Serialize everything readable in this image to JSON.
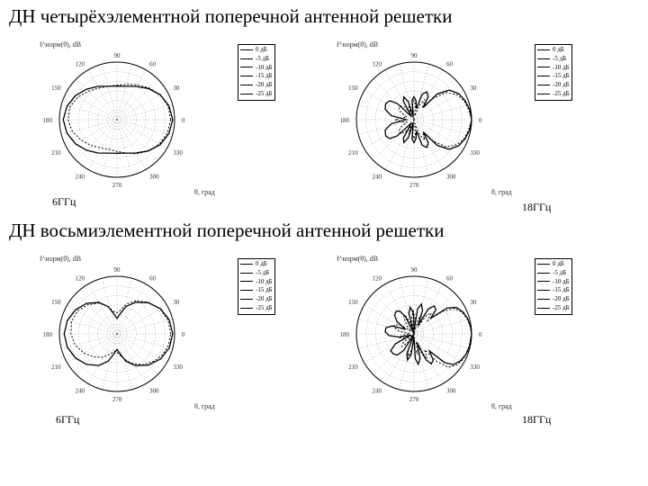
{
  "background_color": "#ffffff",
  "text_color": "#000000",
  "section1": {
    "title": "ДН четырёхэлементной поперечной антенной решетки",
    "left_freq": "6ГГц",
    "right_freq": "18ГГц"
  },
  "section2": {
    "title": "ДН восьмиэлементной поперечной антенной решетки",
    "left_freq": "6ГГц",
    "right_freq": "18ГГц"
  },
  "polar": {
    "type": "polar",
    "outer_r": 64,
    "rings_dB": [
      0,
      -5,
      -10,
      -15,
      -20,
      -25,
      -30
    ],
    "angle_ticks_deg": [
      0,
      15,
      30,
      45,
      60,
      75,
      90,
      105,
      120,
      135,
      150,
      165,
      180,
      195,
      210,
      225,
      240,
      255,
      270,
      285,
      300,
      315,
      330,
      345
    ],
    "angle_labels": [
      0,
      30,
      60,
      90,
      120,
      150,
      180,
      210,
      240,
      270,
      300,
      330
    ],
    "grid_color": "#888888",
    "grid_stroke": 0.4,
    "outline_color": "#000000",
    "outline_stroke": 1,
    "label_fontsize": 7,
    "title_y": "f^норм(θ), dB",
    "title_x": "θ, град"
  },
  "legend": {
    "items": [
      "0 дБ",
      "-5 дБ",
      "-10 дБ",
      "-15 дБ",
      "-20 дБ",
      "-25 дБ"
    ]
  },
  "curves": {
    "stroke_color": "#000000",
    "stroke_solid": 1.3,
    "stroke_dash": 1,
    "dash_pattern": "2,2",
    "four_6": {
      "solid": [
        [
          0,
          -1
        ],
        [
          15,
          -2
        ],
        [
          30,
          -4
        ],
        [
          45,
          -7
        ],
        [
          60,
          -10
        ],
        [
          75,
          -12
        ],
        [
          90,
          -12.5
        ],
        [
          105,
          -12
        ],
        [
          120,
          -10
        ],
        [
          135,
          -7.5
        ],
        [
          150,
          -5
        ],
        [
          165,
          -3
        ],
        [
          180,
          -2
        ],
        [
          195,
          -3
        ],
        [
          210,
          -5
        ],
        [
          225,
          -7.5
        ],
        [
          240,
          -10
        ],
        [
          255,
          -12
        ],
        [
          270,
          -12.5
        ],
        [
          285,
          -12
        ],
        [
          300,
          -10
        ],
        [
          315,
          -7
        ],
        [
          330,
          -4
        ],
        [
          345,
          -2
        ]
      ],
      "dashed": [
        [
          0,
          -2
        ],
        [
          15,
          -2.5
        ],
        [
          30,
          -4
        ],
        [
          45,
          -6.5
        ],
        [
          60,
          -9
        ],
        [
          75,
          -11
        ],
        [
          90,
          -12
        ],
        [
          105,
          -12
        ],
        [
          120,
          -11
        ],
        [
          135,
          -9
        ],
        [
          150,
          -6.5
        ],
        [
          165,
          -4.5
        ],
        [
          180,
          -4.5
        ],
        [
          195,
          -6
        ],
        [
          210,
          -8.5
        ],
        [
          225,
          -11
        ],
        [
          240,
          -13
        ],
        [
          255,
          -14
        ],
        [
          270,
          -13.5
        ],
        [
          285,
          -12
        ],
        [
          300,
          -9.5
        ],
        [
          315,
          -7
        ],
        [
          330,
          -4.5
        ],
        [
          345,
          -2.8
        ]
      ]
    },
    "four_18": {
      "solid": [
        [
          0,
          0
        ],
        [
          10,
          -0.5
        ],
        [
          20,
          -1.5
        ],
        [
          30,
          -3
        ],
        [
          40,
          -6
        ],
        [
          48,
          -12
        ],
        [
          53,
          -22
        ],
        [
          58,
          -16
        ],
        [
          65,
          -14
        ],
        [
          72,
          -16
        ],
        [
          78,
          -24
        ],
        [
          84,
          -20
        ],
        [
          90,
          -18
        ],
        [
          96,
          -20
        ],
        [
          102,
          -28
        ],
        [
          108,
          -20
        ],
        [
          114,
          -17
        ],
        [
          120,
          -19
        ],
        [
          128,
          -28
        ],
        [
          136,
          -18
        ],
        [
          142,
          -14
        ],
        [
          150,
          -13
        ],
        [
          160,
          -14
        ],
        [
          170,
          -18
        ],
        [
          180,
          -26
        ],
        [
          190,
          -18
        ],
        [
          200,
          -14
        ],
        [
          210,
          -13
        ],
        [
          218,
          -14
        ],
        [
          224,
          -18
        ],
        [
          232,
          -28
        ],
        [
          240,
          -19
        ],
        [
          246,
          -17
        ],
        [
          252,
          -20
        ],
        [
          258,
          -28
        ],
        [
          264,
          -20
        ],
        [
          270,
          -18
        ],
        [
          276,
          -20
        ],
        [
          282,
          -24
        ],
        [
          288,
          -16
        ],
        [
          295,
          -14
        ],
        [
          302,
          -16
        ],
        [
          307,
          -22
        ],
        [
          312,
          -12
        ],
        [
          320,
          -6
        ],
        [
          330,
          -3
        ],
        [
          340,
          -1.5
        ],
        [
          350,
          -0.5
        ]
      ],
      "dashed": [
        [
          0,
          0
        ],
        [
          10,
          -1
        ],
        [
          20,
          -2
        ],
        [
          30,
          -4
        ],
        [
          40,
          -8
        ],
        [
          48,
          -15
        ],
        [
          55,
          -22
        ],
        [
          62,
          -18
        ],
        [
          70,
          -22
        ],
        [
          78,
          -28
        ],
        [
          85,
          -22
        ],
        [
          90,
          -20
        ],
        [
          95,
          -22
        ],
        [
          102,
          -30
        ],
        [
          110,
          -22
        ],
        [
          118,
          -26
        ],
        [
          126,
          -22
        ],
        [
          134,
          -20
        ],
        [
          142,
          -20
        ],
        [
          150,
          -22
        ],
        [
          160,
          -26
        ],
        [
          170,
          -24
        ],
        [
          180,
          -20
        ],
        [
          190,
          -24
        ],
        [
          200,
          -26
        ],
        [
          210,
          -22
        ],
        [
          218,
          -20
        ],
        [
          226,
          -20
        ],
        [
          234,
          -22
        ],
        [
          242,
          -26
        ],
        [
          250,
          -22
        ],
        [
          258,
          -30
        ],
        [
          265,
          -22
        ],
        [
          270,
          -20
        ],
        [
          275,
          -22
        ],
        [
          282,
          -28
        ],
        [
          290,
          -22
        ],
        [
          298,
          -18
        ],
        [
          305,
          -22
        ],
        [
          312,
          -15
        ],
        [
          320,
          -8
        ],
        [
          330,
          -4
        ],
        [
          340,
          -2
        ],
        [
          350,
          -1
        ]
      ]
    },
    "eight_6": {
      "solid": [
        [
          0,
          -1
        ],
        [
          15,
          -1.8
        ],
        [
          30,
          -3.8
        ],
        [
          45,
          -7
        ],
        [
          60,
          -11
        ],
        [
          72,
          -15
        ],
        [
          80,
          -19
        ],
        [
          90,
          -22
        ],
        [
          100,
          -19
        ],
        [
          108,
          -15
        ],
        [
          120,
          -11
        ],
        [
          135,
          -7.5
        ],
        [
          150,
          -5
        ],
        [
          165,
          -3.2
        ],
        [
          180,
          -2.5
        ],
        [
          195,
          -3.2
        ],
        [
          210,
          -5
        ],
        [
          225,
          -7.5
        ],
        [
          240,
          -11
        ],
        [
          252,
          -15
        ],
        [
          260,
          -19
        ],
        [
          270,
          -22
        ],
        [
          280,
          -19
        ],
        [
          288,
          -15
        ],
        [
          300,
          -11
        ],
        [
          315,
          -7
        ],
        [
          330,
          -3.8
        ],
        [
          345,
          -1.8
        ]
      ],
      "dashed": [
        [
          0,
          -2
        ],
        [
          15,
          -2.5
        ],
        [
          30,
          -4
        ],
        [
          45,
          -6.8
        ],
        [
          60,
          -10
        ],
        [
          72,
          -13.5
        ],
        [
          80,
          -17
        ],
        [
          90,
          -19
        ],
        [
          100,
          -18
        ],
        [
          108,
          -15
        ],
        [
          120,
          -11.5
        ],
        [
          135,
          -8.5
        ],
        [
          150,
          -6.2
        ],
        [
          165,
          -5.5
        ],
        [
          180,
          -6
        ],
        [
          195,
          -7.5
        ],
        [
          210,
          -10
        ],
        [
          225,
          -13
        ],
        [
          240,
          -16
        ],
        [
          252,
          -19
        ],
        [
          262,
          -21
        ],
        [
          272,
          -20
        ],
        [
          284,
          -17
        ],
        [
          296,
          -13
        ],
        [
          310,
          -9
        ],
        [
          324,
          -6
        ],
        [
          336,
          -3.8
        ],
        [
          348,
          -2.5
        ]
      ]
    },
    "eight_18": {
      "solid": [
        [
          0,
          0
        ],
        [
          8,
          -0.3
        ],
        [
          16,
          -1
        ],
        [
          24,
          -2
        ],
        [
          32,
          -4
        ],
        [
          38,
          -8
        ],
        [
          43,
          -18
        ],
        [
          48,
          -13
        ],
        [
          54,
          -12
        ],
        [
          60,
          -15
        ],
        [
          65,
          -25
        ],
        [
          70,
          -17
        ],
        [
          76,
          -14
        ],
        [
          82,
          -17
        ],
        [
          87,
          -28
        ],
        [
          92,
          -19
        ],
        [
          98,
          -16
        ],
        [
          104,
          -19
        ],
        [
          110,
          -30
        ],
        [
          116,
          -20
        ],
        [
          122,
          -16
        ],
        [
          128,
          -15
        ],
        [
          136,
          -16
        ],
        [
          144,
          -19
        ],
        [
          152,
          -25
        ],
        [
          160,
          -18
        ],
        [
          168,
          -15
        ],
        [
          176,
          -15
        ],
        [
          184,
          -17
        ],
        [
          192,
          -22
        ],
        [
          200,
          -28
        ],
        [
          208,
          -19
        ],
        [
          216,
          -15
        ],
        [
          224,
          -15
        ],
        [
          232,
          -16
        ],
        [
          238,
          -20
        ],
        [
          244,
          -30
        ],
        [
          250,
          -19
        ],
        [
          256,
          -16
        ],
        [
          262,
          -19
        ],
        [
          268,
          -28
        ],
        [
          273,
          -17
        ],
        [
          278,
          -14
        ],
        [
          284,
          -17
        ],
        [
          290,
          -25
        ],
        [
          295,
          -15
        ],
        [
          300,
          -12
        ],
        [
          306,
          -13
        ],
        [
          312,
          -18
        ],
        [
          317,
          -8
        ],
        [
          322,
          -4
        ],
        [
          330,
          -2
        ],
        [
          338,
          -1
        ],
        [
          348,
          -0.3
        ]
      ],
      "dashed": [
        [
          0,
          0
        ],
        [
          8,
          -0.5
        ],
        [
          16,
          -1.3
        ],
        [
          24,
          -2.5
        ],
        [
          32,
          -5
        ],
        [
          38,
          -11
        ],
        [
          44,
          -20
        ],
        [
          50,
          -16
        ],
        [
          56,
          -18
        ],
        [
          62,
          -26
        ],
        [
          68,
          -19
        ],
        [
          74,
          -22
        ],
        [
          80,
          -30
        ],
        [
          86,
          -22
        ],
        [
          92,
          -18
        ],
        [
          98,
          -21
        ],
        [
          104,
          -30
        ],
        [
          110,
          -23
        ],
        [
          116,
          -19
        ],
        [
          122,
          -20
        ],
        [
          130,
          -24
        ],
        [
          138,
          -28
        ],
        [
          146,
          -22
        ],
        [
          154,
          -19
        ],
        [
          162,
          -19
        ],
        [
          170,
          -22
        ],
        [
          178,
          -28
        ],
        [
          186,
          -24
        ],
        [
          194,
          -22
        ],
        [
          202,
          -24
        ],
        [
          210,
          -30
        ],
        [
          218,
          -23
        ],
        [
          226,
          -21
        ],
        [
          234,
          -24
        ],
        [
          242,
          -30
        ],
        [
          250,
          -21
        ],
        [
          256,
          -18
        ],
        [
          262,
          -22
        ],
        [
          268,
          -30
        ],
        [
          274,
          -22
        ],
        [
          280,
          -19
        ],
        [
          286,
          -26
        ],
        [
          292,
          -18
        ],
        [
          298,
          -16
        ],
        [
          304,
          -20
        ],
        [
          310,
          -11
        ],
        [
          316,
          -5
        ],
        [
          324,
          -2.5
        ],
        [
          332,
          -1.3
        ],
        [
          342,
          -0.5
        ]
      ]
    }
  }
}
